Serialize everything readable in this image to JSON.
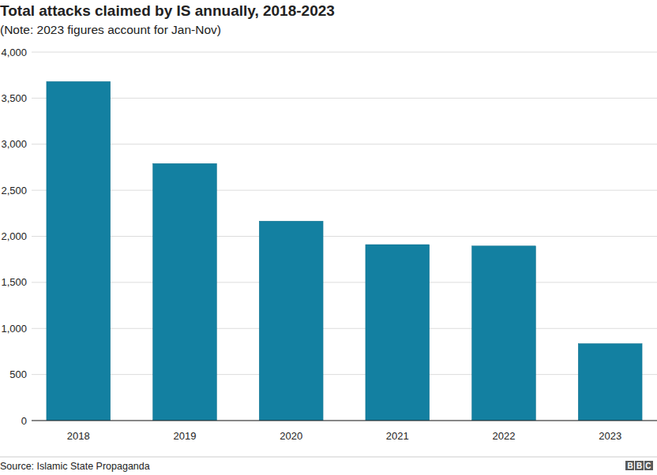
{
  "chart_data": {
    "type": "bar",
    "title": "Total attacks claimed by IS annually, 2018-2023",
    "subtitle": "(Note: 2023 figures account for Jan-Nov)",
    "categories": [
      "2018",
      "2019",
      "2020",
      "2021",
      "2022",
      "2023"
    ],
    "values": [
      3680,
      2790,
      2165,
      1910,
      1895,
      835
    ],
    "color": "#1380a1",
    "ylim": [
      0,
      4000
    ],
    "yticks": [
      0,
      500,
      {
        "value": 1000,
        "label": "1,000"
      },
      {
        "value": 1500,
        "label": "1,500"
      },
      {
        "value": 2000,
        "label": "2,000"
      },
      {
        "value": 2500,
        "label": "2,500"
      },
      {
        "value": 3000,
        "label": "3,000"
      },
      {
        "value": 3500,
        "label": "3,500"
      },
      {
        "value": 4000,
        "label": "4,000"
      }
    ],
    "grid": true,
    "source": "Source: Islamic State Propaganda",
    "logo": "BBC"
  }
}
